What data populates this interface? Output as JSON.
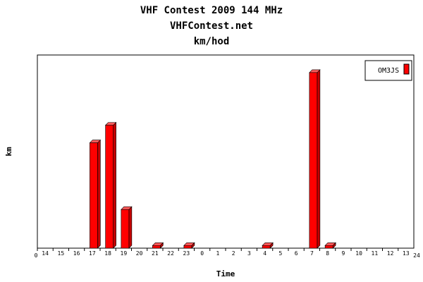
{
  "chart_data": {
    "type": "bar",
    "title": "VHF Contest 2009 144 MHz",
    "subtitle": "VHFContest.net",
    "subtitle2": "km/hod",
    "xlabel": "Time",
    "ylabel": "km",
    "x_start": "0",
    "x_end": "24",
    "categories": [
      "14",
      "15",
      "16",
      "17",
      "18",
      "19",
      "20",
      "21",
      "22",
      "23",
      "0",
      "1",
      "2",
      "3",
      "4",
      "5",
      "6",
      "7",
      "8",
      "9",
      "10",
      "11",
      "12",
      "13"
    ],
    "series": [
      {
        "name": "OM3JS",
        "values": [
          0,
          0,
          0,
          60,
          70,
          22,
          0,
          1.5,
          0,
          1.5,
          0,
          0,
          0,
          0,
          1.5,
          0,
          0,
          100,
          1.5,
          0,
          0,
          0,
          0,
          0
        ]
      }
    ],
    "ylim": [
      0,
      110
    ],
    "grid": false,
    "legend_position": "top-right",
    "colors": {
      "bar_front": "#ff0000",
      "bar_side": "#c40000",
      "bar_top": "#ff5a5a",
      "outline": "#000000"
    }
  }
}
